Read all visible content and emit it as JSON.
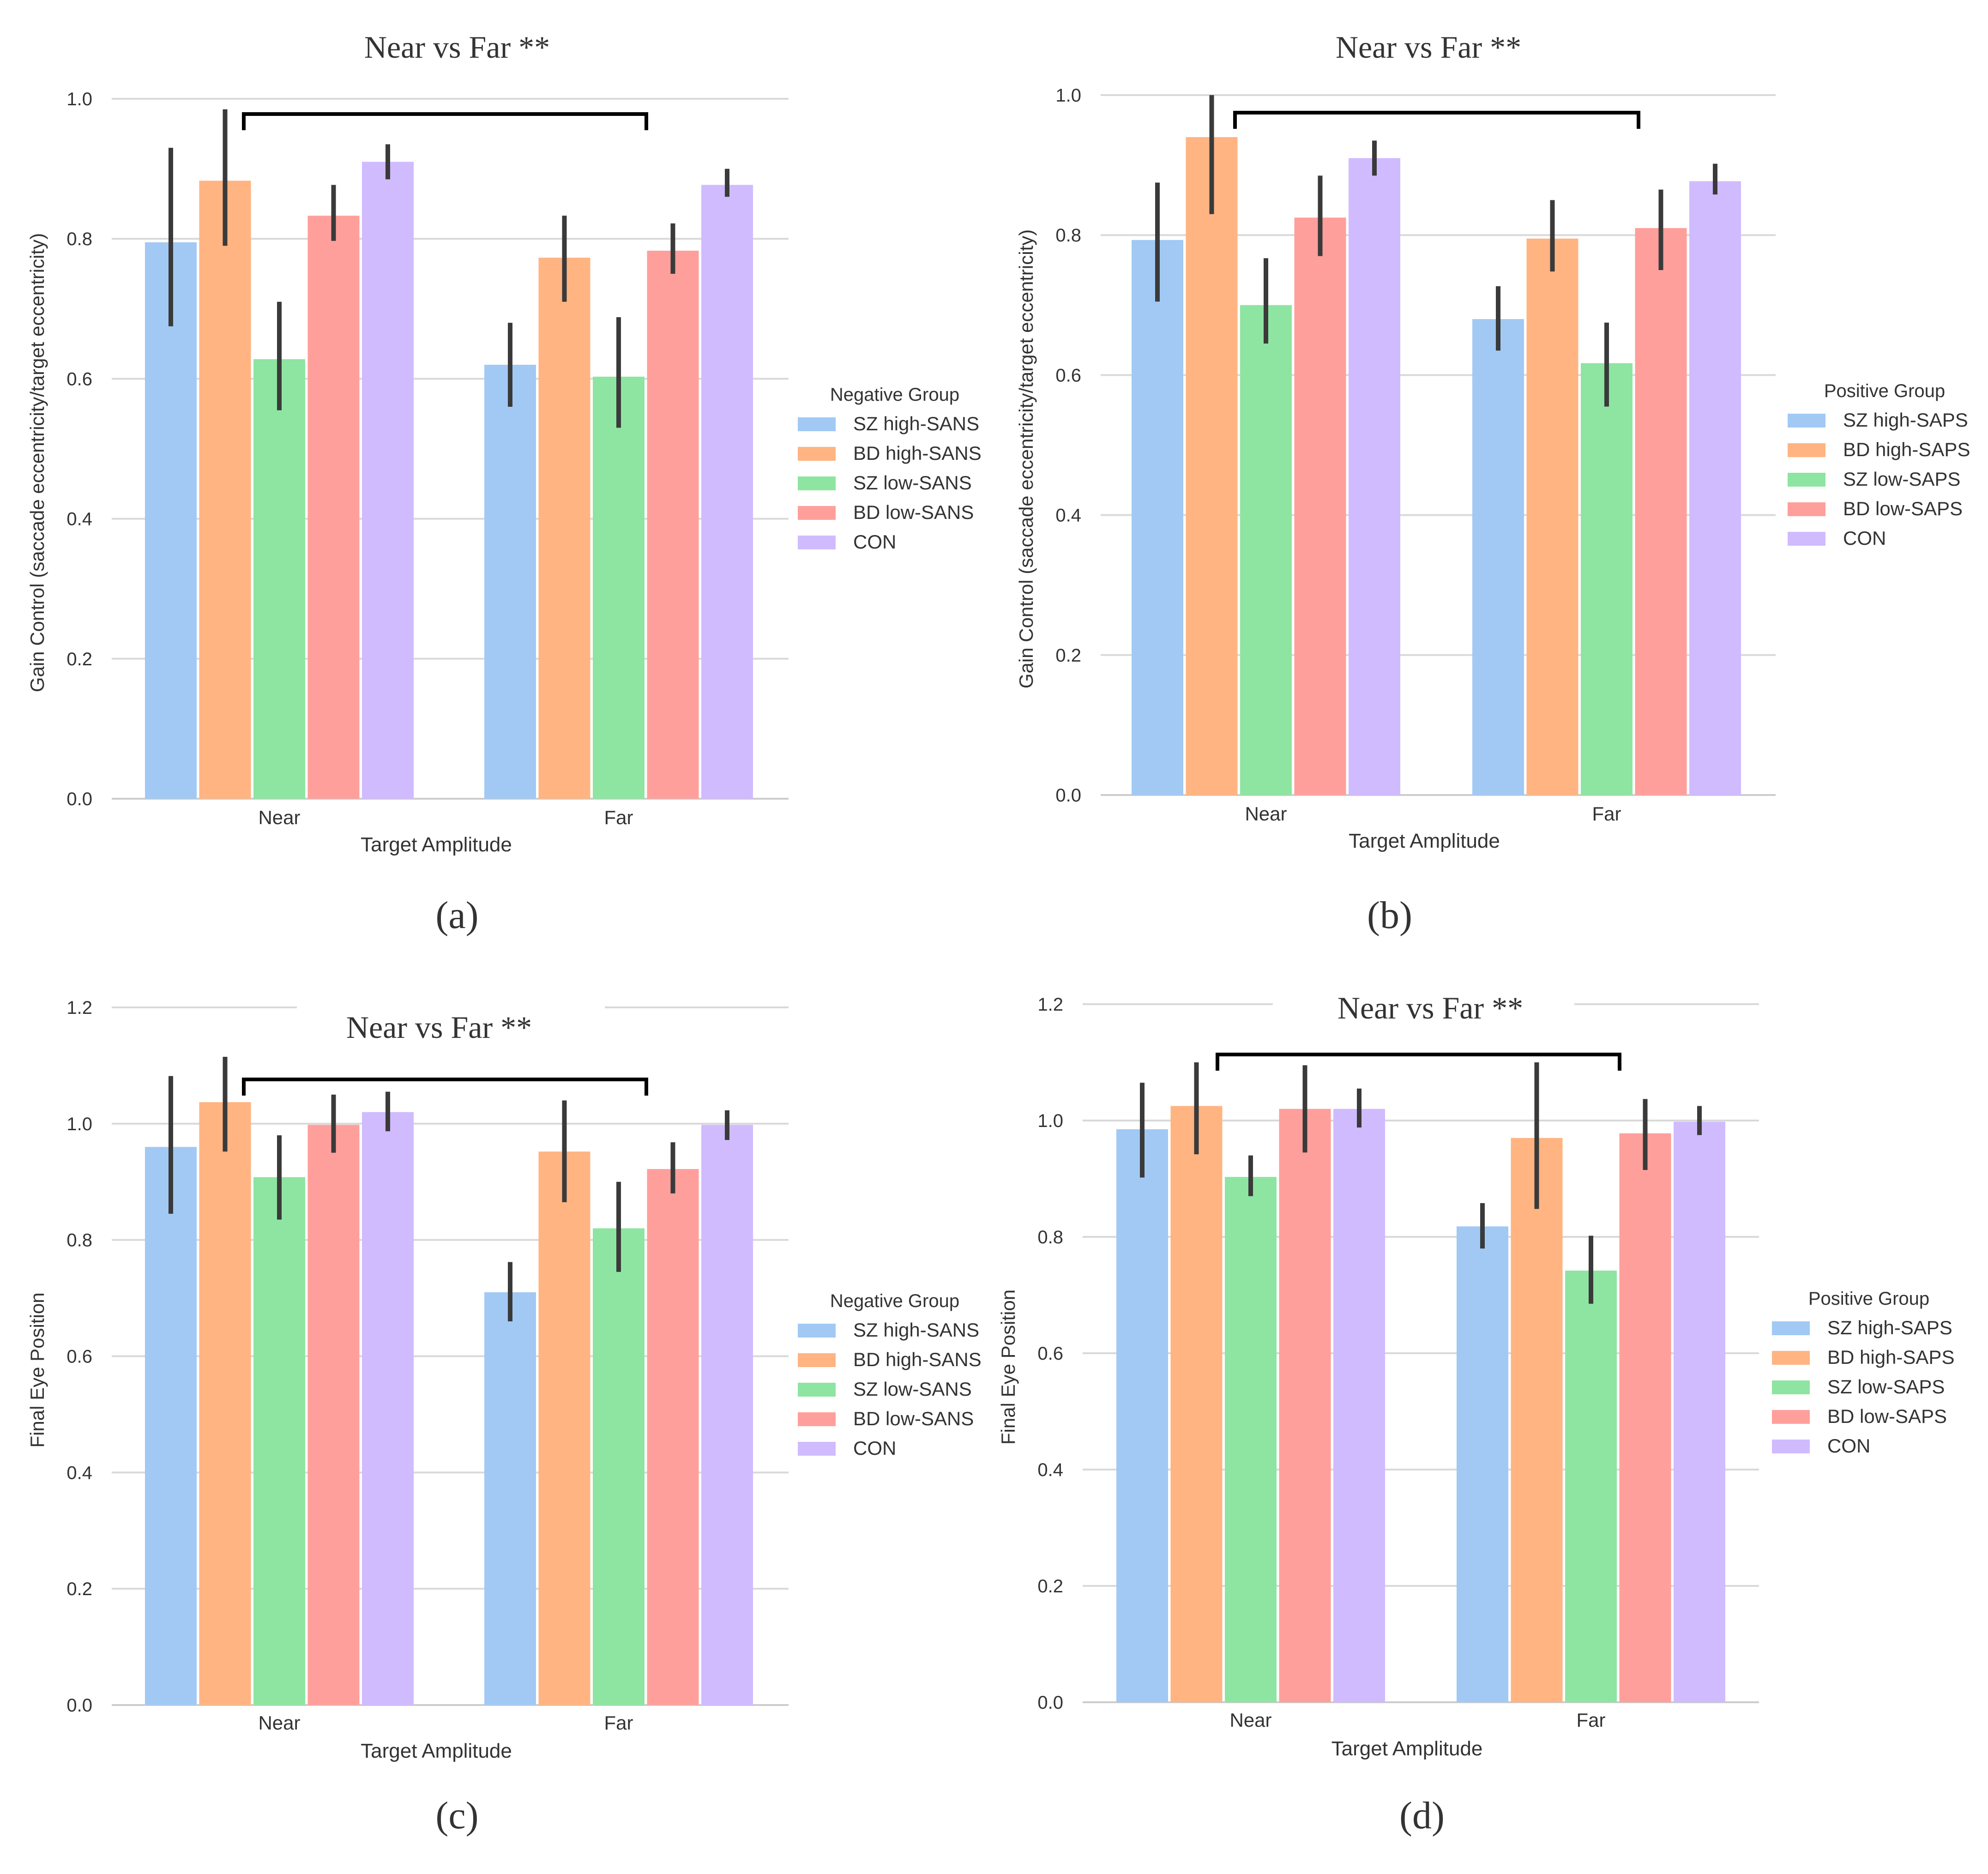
{
  "colors": {
    "series": [
      "#a1c9f4",
      "#ffb482",
      "#8de5a1",
      "#ff9f9b",
      "#d0bbff"
    ],
    "errorbar": "#3a3a3a",
    "grid": "#d9d9d9",
    "axis": "#cccccc",
    "bracket": "#000000"
  },
  "chart_data": [
    {
      "id": "a",
      "type": "bar",
      "panel_label": "(a)",
      "title": "Near vs Far **",
      "xlabel": "Target Amplitude",
      "ylabel": "Gain Control (saccade eccentricity/target eccentricity)",
      "categories": [
        "Near",
        "Far"
      ],
      "ylim": [
        0,
        1.0
      ],
      "yticks": [
        "0.0",
        "0.2",
        "0.4",
        "0.6",
        "0.8",
        "1.0"
      ],
      "grid": true,
      "legend": {
        "title": "Negative Group",
        "position": "right-center"
      },
      "series": [
        {
          "name": "SZ high-SANS",
          "values": [
            0.795,
            0.62
          ],
          "err_low": [
            0.675,
            0.56
          ],
          "err_high": [
            0.93,
            0.68
          ]
        },
        {
          "name": "BD high-SANS",
          "values": [
            0.883,
            0.773
          ],
          "err_low": [
            0.79,
            0.71
          ],
          "err_high": [
            0.985,
            0.833
          ]
        },
        {
          "name": "SZ low-SANS",
          "values": [
            0.628,
            0.603
          ],
          "err_low": [
            0.555,
            0.53
          ],
          "err_high": [
            0.71,
            0.688
          ]
        },
        {
          "name": "BD low-SANS",
          "values": [
            0.833,
            0.783
          ],
          "err_low": [
            0.797,
            0.75
          ],
          "err_high": [
            0.877,
            0.822
          ]
        },
        {
          "name": "CON",
          "values": [
            0.91,
            0.877
          ],
          "err_low": [
            0.885,
            0.86
          ],
          "err_high": [
            0.935,
            0.9
          ]
        }
      ]
    },
    {
      "id": "b",
      "type": "bar",
      "panel_label": "(b)",
      "title": "Near vs Far **",
      "xlabel": "Target Amplitude",
      "ylabel": "Gain Control (saccade eccentricity/target eccentricity)",
      "categories": [
        "Near",
        "Far"
      ],
      "ylim": [
        0,
        1.0
      ],
      "yticks": [
        "0.0",
        "0.2",
        "0.4",
        "0.6",
        "0.8",
        "1.0"
      ],
      "grid": true,
      "legend": {
        "title": "Positive Group",
        "position": "right-center"
      },
      "series": [
        {
          "name": "SZ high-SAPS",
          "values": [
            0.793,
            0.68
          ],
          "err_low": [
            0.705,
            0.635
          ],
          "err_high": [
            0.875,
            0.727
          ]
        },
        {
          "name": "BD high-SAPS",
          "values": [
            0.94,
            0.795
          ],
          "err_low": [
            0.83,
            0.748
          ],
          "err_high": [
            1.0,
            0.85
          ]
        },
        {
          "name": "SZ low-SAPS",
          "values": [
            0.7,
            0.617
          ],
          "err_low": [
            0.645,
            0.555
          ],
          "err_high": [
            0.767,
            0.675
          ]
        },
        {
          "name": "BD low-SAPS",
          "values": [
            0.825,
            0.81
          ],
          "err_low": [
            0.77,
            0.75
          ],
          "err_high": [
            0.885,
            0.865
          ]
        },
        {
          "name": "CON",
          "values": [
            0.91,
            0.877
          ],
          "err_low": [
            0.885,
            0.858
          ],
          "err_high": [
            0.935,
            0.902
          ]
        }
      ]
    },
    {
      "id": "c",
      "type": "bar",
      "panel_label": "(c)",
      "title": "Near vs Far **",
      "xlabel": "Target Amplitude",
      "ylabel": "Final Eye Position",
      "categories": [
        "Near",
        "Far"
      ],
      "ylim": [
        0,
        1.2
      ],
      "yticks": [
        "0.0",
        "0.2",
        "0.4",
        "0.6",
        "0.8",
        "1.0",
        "1.2"
      ],
      "grid": true,
      "legend": {
        "title": "Negative Group",
        "position": "right-center"
      },
      "series": [
        {
          "name": "SZ high-SANS",
          "values": [
            0.96,
            0.71
          ],
          "err_low": [
            0.845,
            0.66
          ],
          "err_high": [
            1.082,
            0.762
          ]
        },
        {
          "name": "BD high-SANS",
          "values": [
            1.037,
            0.952
          ],
          "err_low": [
            0.952,
            0.865
          ],
          "err_high": [
            1.115,
            1.04
          ]
        },
        {
          "name": "SZ low-SANS",
          "values": [
            0.908,
            0.82
          ],
          "err_low": [
            0.835,
            0.745
          ],
          "err_high": [
            0.98,
            0.9
          ]
        },
        {
          "name": "BD low-SANS",
          "values": [
            0.998,
            0.922
          ],
          "err_low": [
            0.95,
            0.88
          ],
          "err_high": [
            1.05,
            0.968
          ]
        },
        {
          "name": "CON",
          "values": [
            1.02,
            0.998
          ],
          "err_low": [
            0.987,
            0.972
          ],
          "err_high": [
            1.055,
            1.023
          ]
        }
      ]
    },
    {
      "id": "d",
      "type": "bar",
      "panel_label": "(d)",
      "title": "Near vs Far **",
      "xlabel": "Target Amplitude",
      "ylabel": "Final Eye Position",
      "categories": [
        "Near",
        "Far"
      ],
      "ylim": [
        0,
        1.2
      ],
      "yticks": [
        "0.0",
        "0.2",
        "0.4",
        "0.6",
        "0.8",
        "1.0",
        "1.2"
      ],
      "grid": true,
      "legend": {
        "title": "Positive Group",
        "position": "right-center"
      },
      "series": [
        {
          "name": "SZ high-SAPS",
          "values": [
            0.985,
            0.818
          ],
          "err_low": [
            0.902,
            0.78
          ],
          "err_high": [
            1.065,
            0.858
          ]
        },
        {
          "name": "BD high-SAPS",
          "values": [
            1.025,
            0.97
          ],
          "err_low": [
            0.942,
            0.848
          ],
          "err_high": [
            1.1,
            1.1
          ]
        },
        {
          "name": "SZ low-SAPS",
          "values": [
            0.903,
            0.742
          ],
          "err_low": [
            0.87,
            0.685
          ],
          "err_high": [
            0.94,
            0.802
          ]
        },
        {
          "name": "BD low-SAPS",
          "values": [
            1.02,
            0.978
          ],
          "err_low": [
            0.945,
            0.915
          ],
          "err_high": [
            1.095,
            1.037
          ]
        },
        {
          "name": "CON",
          "values": [
            1.02,
            0.998
          ],
          "err_low": [
            0.988,
            0.975
          ],
          "err_high": [
            1.055,
            1.025
          ]
        }
      ]
    }
  ]
}
